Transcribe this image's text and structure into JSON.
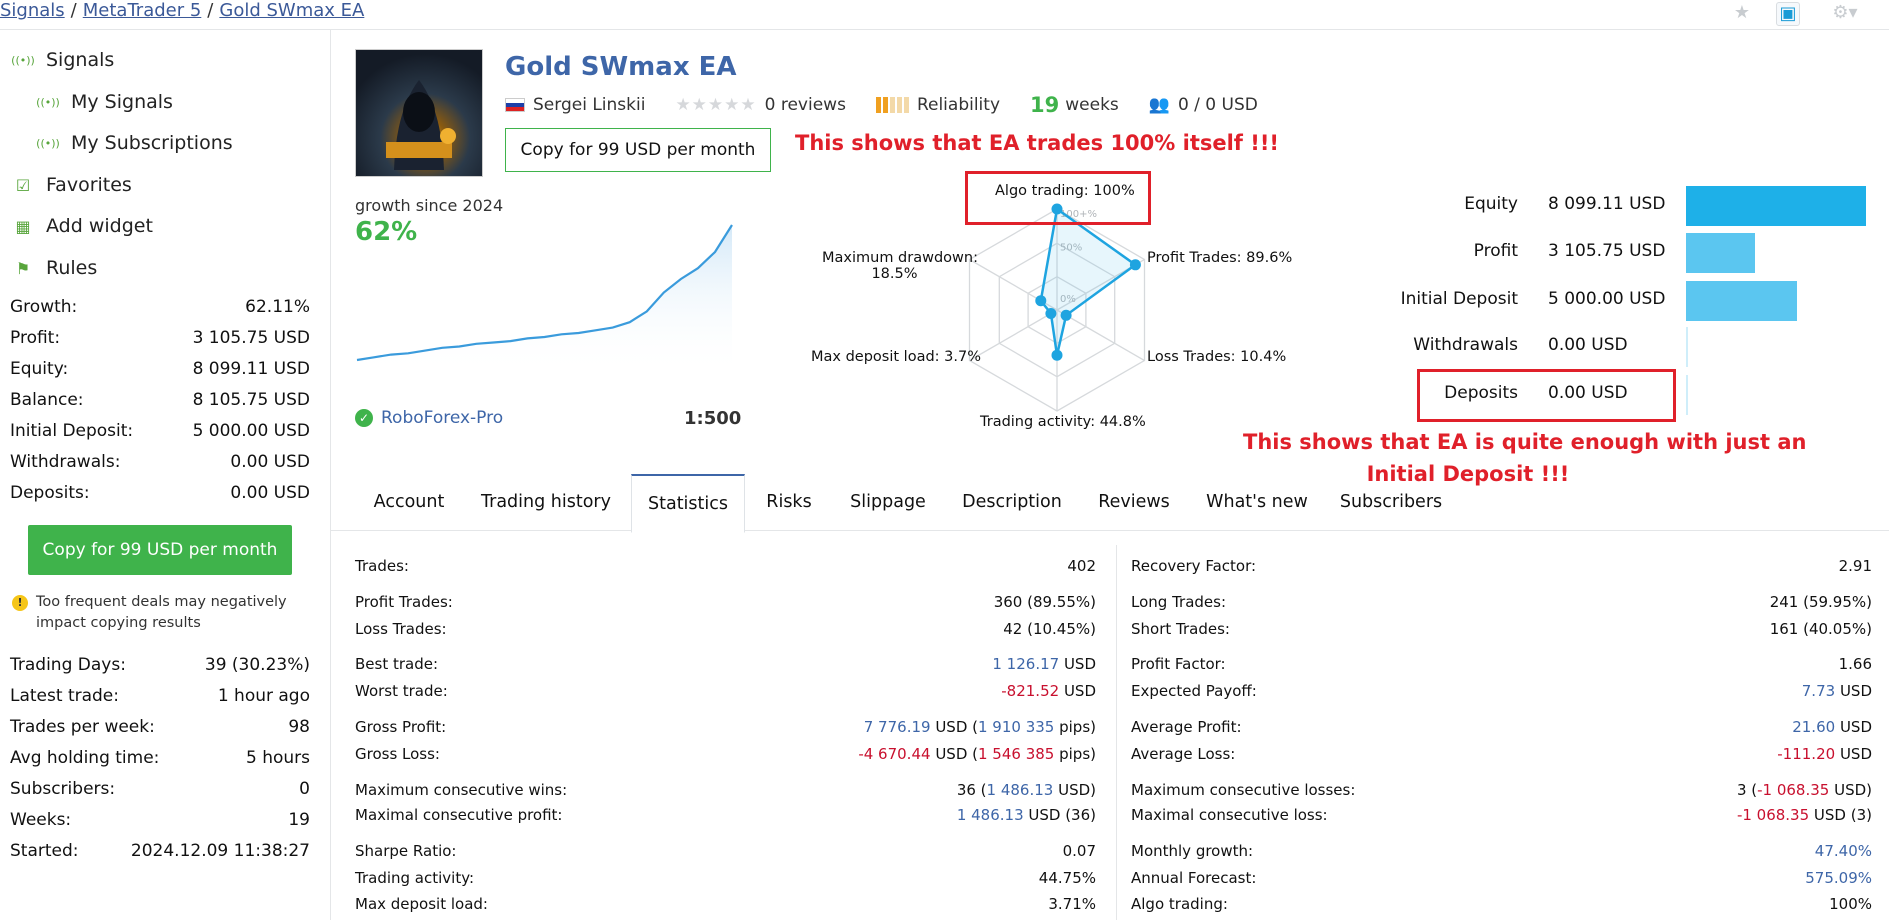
{
  "breadcrumb": [
    "Signals",
    "MetaTrader 5",
    "Gold SWmax EA"
  ],
  "sidebar": {
    "nav": [
      {
        "label": "Signals",
        "icon": "signal-icon"
      },
      {
        "label": "My Signals",
        "icon": "signal-icon"
      },
      {
        "label": "My Subscriptions",
        "icon": "signal-icon"
      },
      {
        "label": "Favorites",
        "icon": "favorites-icon"
      },
      {
        "label": "Add widget",
        "icon": "widget-icon"
      },
      {
        "label": "Rules",
        "icon": "rules-icon"
      }
    ],
    "stats1": [
      {
        "k": "Growth:",
        "v": "62.11%"
      },
      {
        "k": "Profit:",
        "v": "3 105.75 USD"
      },
      {
        "k": "Equity:",
        "v": "8 099.11 USD"
      },
      {
        "k": "Balance:",
        "v": "8 105.75 USD"
      },
      {
        "k": "Initial Deposit:",
        "v": "5 000.00 USD"
      },
      {
        "k": "Withdrawals:",
        "v": "0.00 USD"
      },
      {
        "k": "Deposits:",
        "v": "0.00 USD"
      }
    ],
    "copy_button": "Copy for 99 USD per month",
    "warning": "Too frequent deals may negatively impact copying results",
    "stats2": [
      {
        "k": "Trading Days:",
        "v": "39 (30.23%)"
      },
      {
        "k": "Latest trade:",
        "v": "1 hour ago"
      },
      {
        "k": "Trades per week:",
        "v": "98"
      },
      {
        "k": "Avg holding time:",
        "v": "5 hours"
      },
      {
        "k": "Subscribers:",
        "v": "0"
      },
      {
        "k": "Weeks:",
        "v": "19"
      },
      {
        "k": "Started:",
        "v": "2024.12.09 11:38:27"
      }
    ]
  },
  "header": {
    "title": "Gold SWmax EA",
    "author": "Sergei Linskii",
    "reviews": "0 reviews",
    "reliability": "Reliability",
    "weeks_num": "19",
    "weeks_label": "weeks",
    "subscribers": "0 / 0 USD",
    "copy_button": "Copy for 99 USD per month",
    "reliability_level": 0.4,
    "rating_stars": 0
  },
  "notes": {
    "algo": "This shows that EA trades 100% itself !!!",
    "deposit_line1": "This shows that EA is quite enough with just an",
    "deposit_line2": "Initial Deposit !!!"
  },
  "growth": {
    "label": "growth since 2024",
    "value": "62%",
    "broker": "RoboForex-Pro",
    "leverage": "1:500",
    "curve": [
      0.0,
      0.02,
      0.04,
      0.05,
      0.07,
      0.09,
      0.1,
      0.12,
      0.13,
      0.14,
      0.16,
      0.17,
      0.19,
      0.2,
      0.22,
      0.24,
      0.28,
      0.36,
      0.5,
      0.6,
      0.68,
      0.8,
      1.0
    ]
  },
  "radar": {
    "labels": {
      "algo": "Algo trading: 100%",
      "profit": "Profit Trades: 89.6%",
      "loss": "Loss Trades: 10.4%",
      "activity": "Trading activity: 44.8%",
      "load": "Max deposit load: 3.7%",
      "drawdown1": "Maximum drawdown:",
      "drawdown2": "18.5%"
    },
    "grid_100": "100+%",
    "grid_50": "50%",
    "grid_0": "0%",
    "values": [
      100,
      89.6,
      10.4,
      44.8,
      3.7,
      18.5
    ]
  },
  "balance_bars": [
    {
      "label": "Equity",
      "value": "8 099.11 USD",
      "amount": 8099.11,
      "color": "#1eb0e8"
    },
    {
      "label": "Profit",
      "value": "3 105.75 USD",
      "amount": 3105.75,
      "color": "#5bc6f0"
    },
    {
      "label": "Initial Deposit",
      "value": "5 000.00 USD",
      "amount": 5000.0,
      "color": "#5bc6f0"
    },
    {
      "label": "Withdrawals",
      "value": "0.00 USD",
      "amount": 0,
      "color": "#5bc6f0"
    },
    {
      "label": "Deposits",
      "value": "0.00 USD",
      "amount": 0,
      "color": "#5bc6f0"
    }
  ],
  "tabs": [
    "Account",
    "Trading history",
    "Statistics",
    "Risks",
    "Slippage",
    "Description",
    "Reviews",
    "What's new",
    "Subscribers"
  ],
  "stats_left": [
    {
      "k": "Trades:",
      "v": "402"
    },
    {
      "k": "Profit Trades:",
      "v": "360 (89.55%)"
    },
    {
      "k": "Loss Trades:",
      "v": "42 (10.45%)"
    },
    {
      "k": "Best trade:",
      "v1": "1 126.17",
      "v2": " USD",
      "c": "b"
    },
    {
      "k": "Worst trade:",
      "v1": "-821.52",
      "v2": " USD",
      "c": "r"
    },
    {
      "k": "Gross Profit:",
      "html": "<span class='b'>7 776.19</span> USD (<span class='b'>1 910 335</span> pips)"
    },
    {
      "k": "Gross Loss:",
      "html": "<span class='r'>-4 670.44</span> USD (<span class='r'>1 546 385</span> pips)"
    },
    {
      "k": "Maximum consecutive wins:",
      "html": "36 (<span class='b'>1 486.13</span> USD)"
    },
    {
      "k": "Maximal consecutive profit:",
      "html": "<span class='b'>1 486.13</span> USD (36)"
    },
    {
      "k": "Sharpe Ratio:",
      "v": "0.07"
    },
    {
      "k": "Trading activity:",
      "v": "44.75%"
    },
    {
      "k": "Max deposit load:",
      "v": "3.71%"
    }
  ],
  "stats_right": [
    {
      "k": "Recovery Factor:",
      "v": "2.91"
    },
    {
      "k": "Long Trades:",
      "v": "241 (59.95%)"
    },
    {
      "k": "Short Trades:",
      "v": "161 (40.05%)"
    },
    {
      "k": "Profit Factor:",
      "v": "1.66"
    },
    {
      "k": "Expected Payoff:",
      "v1": "7.73",
      "v2": " USD",
      "c": "b"
    },
    {
      "k": "Average Profit:",
      "v1": "21.60",
      "v2": " USD",
      "c": "b"
    },
    {
      "k": "Average Loss:",
      "v1": "-111.20",
      "v2": " USD",
      "c": "r"
    },
    {
      "k": "Maximum consecutive losses:",
      "html": "3 (<span class='r'>-1 068.35</span> USD)"
    },
    {
      "k": "Maximal consecutive loss:",
      "html": "<span class='r'>-1 068.35</span> USD (3)"
    },
    {
      "k": "Monthly growth:",
      "v1": "47.40%",
      "v2": "",
      "c": "b"
    },
    {
      "k": "Annual Forecast:",
      "v1": "575.09%",
      "v2": "",
      "c": "b"
    },
    {
      "k": "Algo trading:",
      "v": "100%"
    }
  ]
}
